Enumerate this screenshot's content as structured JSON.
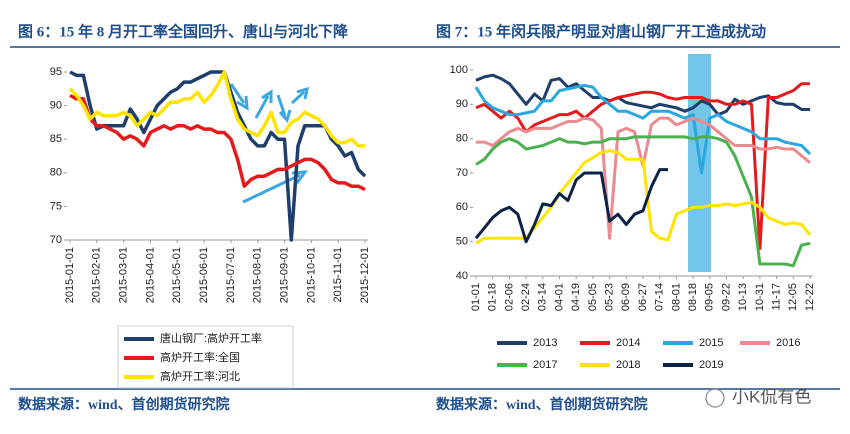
{
  "footer": {
    "left_source": "数据来源：wind、首创期货研究院",
    "right_source": "数据来源：wind、首创期货研究院",
    "watermark": "小K侃有色"
  },
  "chart_data": [
    {
      "type": "line",
      "title": "图 6：15 年 8 月开工率全国回升、唐山与河北下降",
      "categories": [
        "2015-01-01",
        null,
        null,
        null,
        "2015-02-01",
        null,
        null,
        null,
        "2015-03-01",
        null,
        null,
        null,
        "2015-04-01",
        null,
        null,
        null,
        "2015-05-01",
        null,
        null,
        null,
        "2015-06-01",
        null,
        null,
        null,
        "2015-07-01",
        null,
        null,
        null,
        "2015-08-01",
        null,
        null,
        null,
        "2015-09-01",
        null,
        null,
        null,
        "2015-10-01",
        null,
        null,
        null,
        "2015-11-01",
        null,
        null,
        null,
        "2015-12-01"
      ],
      "ylim": [
        70,
        95
      ],
      "yticks": [
        70,
        75,
        80,
        85,
        90,
        95
      ],
      "series": [
        {
          "name": "唐山钢厂:高炉开工率",
          "color": "#1f3e6b",
          "values": [
            95,
            94.5,
            94.5,
            90,
            86.5,
            87,
            87,
            87,
            87,
            89.5,
            88,
            86,
            88,
            90,
            91,
            92,
            92.5,
            93.5,
            93.5,
            94,
            94.5,
            95,
            95,
            95,
            92,
            89,
            87,
            85,
            84,
            84,
            86,
            85,
            85,
            70,
            84,
            87,
            87,
            87,
            87,
            85,
            84,
            82.5,
            83,
            80.5,
            79.5
          ]
        },
        {
          "name": "高炉开工率:全国",
          "color": "#e41a1c",
          "values": [
            91.5,
            91,
            91,
            88,
            87,
            87,
            86.5,
            86,
            85,
            85.5,
            85,
            84,
            86,
            86.5,
            87,
            86.5,
            87,
            87,
            86.5,
            87,
            86.5,
            86.5,
            86,
            86,
            85,
            82,
            78,
            79,
            79.5,
            79.5,
            80,
            80.5,
            80.5,
            81,
            81.5,
            82,
            82,
            81.5,
            80.5,
            79,
            78.5,
            78.5,
            78,
            78,
            77.5
          ]
        },
        {
          "name": "高炉开工率:河北",
          "color": "#ffe400",
          "values": [
            92.5,
            91.5,
            90,
            88,
            89,
            88.5,
            88.5,
            88.5,
            89,
            88.5,
            87,
            88,
            89,
            88.5,
            89.5,
            90.5,
            90.5,
            91,
            91,
            92,
            90.5,
            91.5,
            93,
            95,
            91,
            88,
            86.5,
            86,
            85.5,
            87,
            89,
            86,
            86,
            87.5,
            88,
            89,
            88.5,
            88,
            87,
            85.5,
            84.5,
            84.5,
            85,
            84,
            84
          ]
        }
      ]
    },
    {
      "type": "line",
      "title": "图 7：15 年闵兵限产明显对唐山钢厂开工造成扰动",
      "categories": [
        "01-01",
        null,
        "01-18",
        null,
        "02-06",
        null,
        "02-24",
        null,
        "03-14",
        null,
        "04-01",
        null,
        "04-19",
        null,
        "05-05",
        null,
        "05-23",
        null,
        "06-09",
        null,
        "06-27",
        null,
        "07-14",
        null,
        "08-01",
        null,
        "08-18",
        null,
        "09-05",
        null,
        "09-22",
        null,
        "10-13",
        null,
        "10-31",
        null,
        "11-17",
        null,
        "12-05",
        null,
        "12-22"
      ],
      "ylim": [
        40,
        100
      ],
      "yticks": [
        40,
        50,
        60,
        70,
        80,
        90,
        100
      ],
      "series": [
        {
          "name": "2013",
          "color": "#1f3e6b",
          "values": [
            97,
            98,
            98.5,
            97.5,
            96,
            93,
            90,
            93,
            91,
            97,
            97.5,
            95,
            96,
            94,
            92,
            92,
            91,
            92,
            90.5,
            90,
            89.5,
            89,
            90,
            89.5,
            89,
            88,
            89,
            91,
            90,
            87,
            88,
            91.5,
            90,
            91,
            92,
            92.5,
            90.5,
            90,
            90,
            88.5,
            88.5
          ]
        },
        {
          "name": "2014",
          "color": "#e41a1c",
          "values": [
            89,
            90,
            88,
            86,
            88,
            86,
            82,
            84,
            85,
            86,
            87,
            87,
            88,
            86,
            88,
            90,
            91,
            92,
            92.5,
            93,
            93.5,
            93.5,
            93,
            92,
            91.5,
            92,
            92,
            92,
            91,
            91,
            90,
            90,
            91,
            90,
            48,
            92,
            92,
            93,
            94,
            96,
            96
          ]
        },
        {
          "name": "2015",
          "color": "#2aa7df",
          "values": [
            95,
            91,
            89,
            88,
            87,
            87,
            87.5,
            88,
            91,
            91,
            94,
            94.5,
            95,
            95.5,
            95,
            92,
            90,
            88,
            88,
            87,
            86,
            88,
            88,
            88,
            87,
            86,
            87,
            70,
            86,
            87,
            85,
            84,
            83,
            82,
            80,
            80,
            80,
            79,
            78.5,
            78,
            75.5
          ]
        },
        {
          "name": "2016",
          "color": "#ec8a8f",
          "values": [
            79,
            79,
            78,
            80,
            82,
            83,
            82,
            83,
            83,
            83,
            84,
            85,
            85,
            86,
            85.5,
            83,
            51,
            82,
            83,
            82,
            72,
            84,
            86,
            86,
            84,
            85,
            86,
            85,
            84,
            82,
            80,
            78,
            78,
            78,
            77,
            77,
            77.5,
            77,
            77,
            75,
            73
          ]
        },
        {
          "name": "2017",
          "color": "#4cb050",
          "values": [
            72.5,
            74,
            77,
            79,
            80,
            79,
            77,
            77.5,
            78,
            79,
            80,
            79,
            79,
            78.5,
            79,
            79,
            80,
            80,
            80,
            80.5,
            80.5,
            80.5,
            80.5,
            80.5,
            80.5,
            80.5,
            80,
            80.5,
            80.5,
            80,
            79,
            75,
            69,
            63,
            43.5,
            43.5,
            43.5,
            43.5,
            43,
            49,
            49.5
          ]
        },
        {
          "name": "2018",
          "color": "#ffe400",
          "values": [
            49.5,
            51,
            51,
            51,
            51,
            51,
            51,
            54,
            57,
            60,
            64,
            67,
            70,
            73,
            74.5,
            76,
            76.5,
            76,
            74,
            74,
            74,
            53,
            51,
            50.5,
            58,
            59,
            60,
            60,
            60.5,
            60.5,
            61,
            60.5,
            61,
            61.5,
            60,
            57,
            56,
            55,
            55.5,
            55,
            52
          ]
        },
        {
          "name": "2019",
          "color": "#0d2345",
          "values": [
            51,
            54,
            57,
            59,
            60,
            58,
            50,
            55,
            61,
            60.5,
            64,
            62,
            68,
            70,
            70,
            70,
            56,
            58,
            55,
            58,
            59,
            66,
            71,
            71,
            null,
            null,
            null,
            null,
            null,
            null,
            null,
            null,
            null,
            null,
            null,
            null,
            null,
            null,
            null,
            null,
            null
          ]
        }
      ]
    }
  ]
}
